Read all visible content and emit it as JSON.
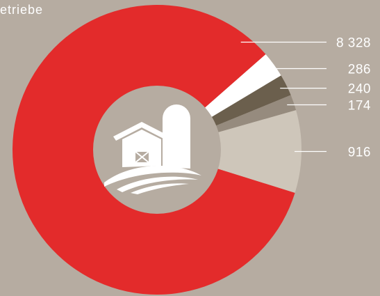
{
  "chart_data": {
    "type": "pie",
    "donut": true,
    "title": "etriebe",
    "categories": [
      "",
      "",
      "",
      "",
      ""
    ],
    "values": [
      8328,
      286,
      240,
      174,
      916
    ],
    "value_labels": [
      "8 328",
      "286",
      "240",
      "174",
      "916"
    ],
    "colors": [
      "#e32b2b",
      "#ffffff",
      "#6b5f4d",
      "#968b7e",
      "#cec6ba"
    ],
    "center_icon": "farm-barn-silo-icon",
    "center_color": "#b6aca1",
    "background": "#b6aca1",
    "legend": "none"
  }
}
